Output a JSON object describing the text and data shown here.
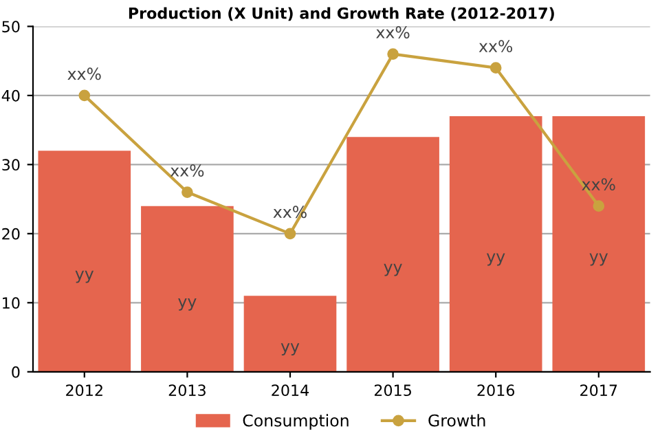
{
  "chart_data": {
    "type": "bar",
    "title": "Production (X Unit) and Growth Rate (2012-2017)",
    "categories": [
      "2012",
      "2013",
      "2014",
      "2015",
      "2016",
      "2017"
    ],
    "series": [
      {
        "name": "Consumption",
        "color": "#e5654e",
        "values": [
          32,
          24,
          11,
          34,
          37,
          37
        ],
        "value_labels": [
          "yy",
          "yy",
          "yy",
          "yy",
          "yy",
          "yy"
        ]
      },
      {
        "name": "Growth",
        "type": "line",
        "color": "#c9a23f",
        "values": [
          40,
          26,
          20,
          46,
          44,
          24
        ],
        "value_labels": [
          "xx%",
          "xx%",
          "xx%",
          "xx%",
          "xx%",
          "xx%"
        ],
        "marker": "circle"
      }
    ],
    "ylim": [
      0,
      50
    ],
    "yticks": [
      0,
      10,
      20,
      30,
      40,
      50
    ],
    "grid": "y",
    "legend": "bottom"
  }
}
